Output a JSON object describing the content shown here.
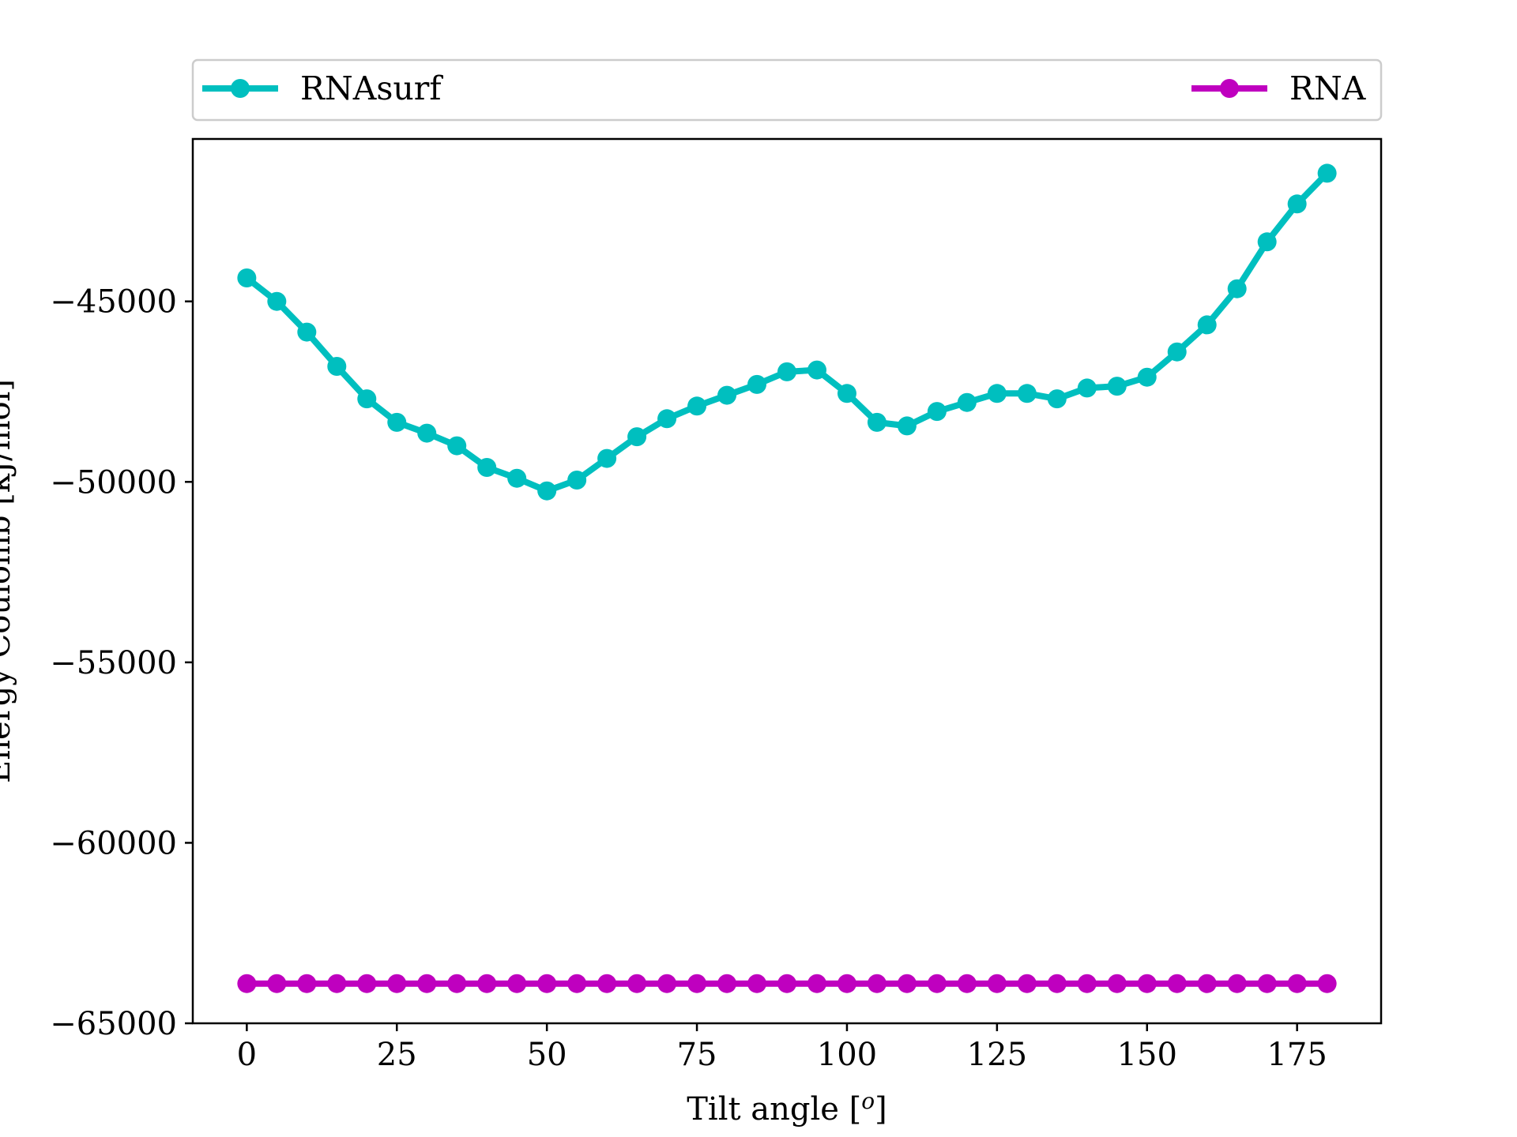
{
  "chart_data": {
    "type": "line",
    "title": "",
    "xlabel": "Tilt angle [",
    "xlabel_sup": "o",
    "xlabel_end": "]",
    "ylabel": "Energy Coulomb [kJ/mol]",
    "xlim": [
      -9,
      189
    ],
    "ylim": [
      -65000,
      -40500
    ],
    "xticks": [
      0,
      25,
      50,
      75,
      100,
      125,
      150,
      175
    ],
    "yticks": [
      -45000,
      -50000,
      -55000,
      -60000,
      -65000
    ],
    "ytick_labels": [
      "−45000",
      "−50000",
      "−55000",
      "−60000",
      "−65000"
    ],
    "legend_position": "top (above plot, spanning full width)",
    "grid": false,
    "x": [
      0,
      5,
      10,
      15,
      20,
      25,
      30,
      35,
      40,
      45,
      50,
      55,
      60,
      65,
      70,
      75,
      80,
      85,
      90,
      95,
      100,
      105,
      110,
      115,
      120,
      125,
      130,
      135,
      140,
      145,
      150,
      155,
      160,
      165,
      170,
      175,
      180
    ],
    "series": [
      {
        "name": "RNAsurf",
        "color": "#00bfbf",
        "marker": "circle",
        "values": [
          -44350,
          -45000,
          -45850,
          -46800,
          -47700,
          -48350,
          -48650,
          -49000,
          -49600,
          -49900,
          -50250,
          -49950,
          -49350,
          -48750,
          -48250,
          -47900,
          -47600,
          -47300,
          -46950,
          -46900,
          -47550,
          -48350,
          -48450,
          -48050,
          -47800,
          -47550,
          -47550,
          -47700,
          -47400,
          -47350,
          -47100,
          -46400,
          -45650,
          -44650,
          -43350,
          -42300,
          -41450
        ]
      },
      {
        "name": "RNA",
        "color": "#bf00bf",
        "marker": "circle",
        "values": [
          -63900,
          -63900,
          -63900,
          -63900,
          -63900,
          -63900,
          -63900,
          -63900,
          -63900,
          -63900,
          -63900,
          -63900,
          -63900,
          -63900,
          -63900,
          -63900,
          -63900,
          -63900,
          -63900,
          -63900,
          -63900,
          -63900,
          -63900,
          -63900,
          -63900,
          -63900,
          -63900,
          -63900,
          -63900,
          -63900,
          -63900,
          -63900,
          -63900,
          -63900,
          -63900,
          -63900,
          -63900
        ]
      }
    ]
  }
}
